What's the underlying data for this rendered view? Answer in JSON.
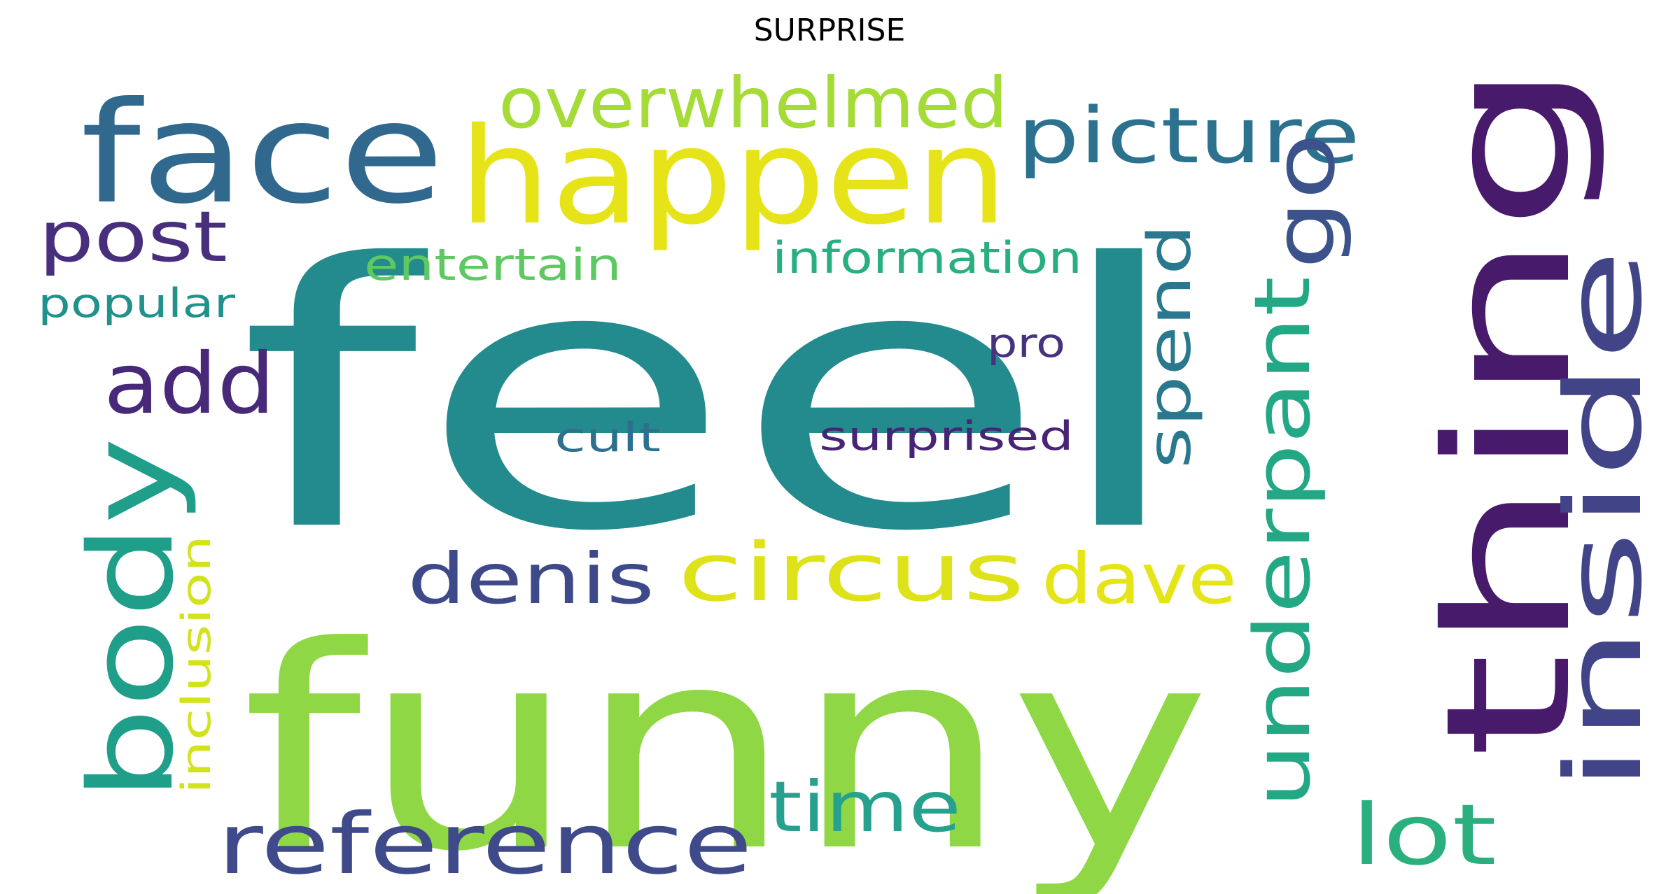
{
  "title": "SURPRISE",
  "words": [
    {
      "text": "feel",
      "color": "#238a8d"
    },
    {
      "text": "funny",
      "color": "#8fd744"
    },
    {
      "text": "happen",
      "color": "#e6e419"
    },
    {
      "text": "face",
      "color": "#31688e"
    },
    {
      "text": "thing",
      "color": "#481a6c"
    },
    {
      "text": "inside",
      "color": "#414487"
    },
    {
      "text": "overwhelmed",
      "color": "#a5db36"
    },
    {
      "text": "picture",
      "color": "#2c728e"
    },
    {
      "text": "post",
      "color": "#472f7d"
    },
    {
      "text": "go",
      "color": "#3b528b"
    },
    {
      "text": "spend",
      "color": "#2a788e"
    },
    {
      "text": "underpant",
      "color": "#22a884"
    },
    {
      "text": "add",
      "color": "#482878"
    },
    {
      "text": "body",
      "color": "#1f9e89"
    },
    {
      "text": "entertain",
      "color": "#5ec962"
    },
    {
      "text": "information",
      "color": "#29af7f"
    },
    {
      "text": "popular",
      "color": "#21918c"
    },
    {
      "text": "pro",
      "color": "#46327e"
    },
    {
      "text": "cult",
      "color": "#2d708e"
    },
    {
      "text": "surprised",
      "color": "#482475"
    },
    {
      "text": "denis",
      "color": "#3e4989"
    },
    {
      "text": "circus",
      "color": "#dde318"
    },
    {
      "text": "dave",
      "color": "#e5e419"
    },
    {
      "text": "inclusion",
      "color": "#d2e21b"
    },
    {
      "text": "reference",
      "color": "#3e4a89"
    },
    {
      "text": "time",
      "color": "#25a18e"
    },
    {
      "text": "lot",
      "color": "#2ab07f"
    }
  ]
}
